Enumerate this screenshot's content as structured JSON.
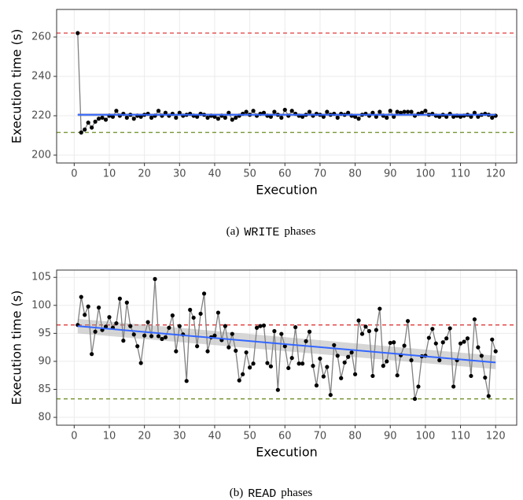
{
  "chart_data": [
    {
      "type": "line",
      "xlabel": "Execution",
      "ylabel": "Execution time (s)",
      "caption": {
        "label": "(a)",
        "code": "WRITE",
        "text": "phases"
      },
      "xlim": [
        -5,
        126
      ],
      "xticks": [
        0,
        10,
        20,
        30,
        40,
        50,
        60,
        70,
        80,
        90,
        100,
        110,
        120
      ],
      "ylim": [
        196,
        274
      ],
      "yticks": [
        200,
        220,
        240,
        260
      ],
      "grid": true,
      "x": [
        1,
        2,
        3,
        4,
        5,
        6,
        7,
        8,
        9,
        10,
        11,
        12,
        13,
        14,
        15,
        16,
        17,
        18,
        19,
        20,
        21,
        22,
        23,
        24,
        25,
        26,
        27,
        28,
        29,
        30,
        31,
        32,
        33,
        34,
        35,
        36,
        37,
        38,
        39,
        40,
        41,
        42,
        43,
        44,
        45,
        46,
        47,
        48,
        49,
        50,
        51,
        52,
        53,
        54,
        55,
        56,
        57,
        58,
        59,
        60,
        61,
        62,
        63,
        64,
        65,
        66,
        67,
        68,
        69,
        70,
        71,
        72,
        73,
        74,
        75,
        76,
        77,
        78,
        79,
        80,
        81,
        82,
        83,
        84,
        85,
        86,
        87,
        88,
        89,
        90,
        91,
        92,
        93,
        94,
        95,
        96,
        97,
        98,
        99,
        100,
        101,
        102,
        103,
        104,
        105,
        106,
        107,
        108,
        109,
        110,
        111,
        112,
        113,
        114,
        115,
        116,
        117,
        118,
        119,
        120
      ],
      "series": [
        {
          "color": "#000000",
          "line_color": "#808080",
          "values": [
            262,
            211.5,
            213,
            216.5,
            214,
            217,
            218.5,
            219,
            218,
            220,
            219.5,
            222.5,
            220,
            221,
            219,
            220.5,
            218.5,
            220,
            219.5,
            220.5,
            221,
            219,
            220,
            222.5,
            220,
            221.5,
            220,
            221,
            219,
            221.5,
            220,
            220.5,
            221,
            220,
            219.5,
            221,
            220.5,
            219,
            220,
            219.5,
            218.5,
            220,
            219,
            221.5,
            218,
            219,
            220,
            221,
            222,
            220.5,
            222.5,
            220,
            221,
            221.5,
            220,
            219.5,
            222,
            220.5,
            219,
            223,
            220,
            222.5,
            221,
            220,
            219.5,
            220.5,
            222,
            220,
            221,
            220.5,
            219.5,
            222,
            220.5,
            221,
            219,
            221,
            220.5,
            221.5,
            220,
            219.5,
            218.5,
            220.5,
            221,
            220,
            221.5,
            219.5,
            222,
            220,
            219,
            222.5,
            219.5,
            222,
            221.5,
            222,
            222,
            222,
            220,
            221,
            221.5,
            222.5,
            220.5,
            221,
            220,
            219.5,
            220.5,
            219.5,
            221,
            219.5,
            220,
            219.5,
            220,
            220.5,
            219.5,
            221.5,
            219.5,
            220.5,
            221,
            220.5,
            219,
            220
          ]
        }
      ],
      "trend": {
        "color": "#3366ff",
        "x": [
          1,
          120
        ],
        "values": [
          220.5,
          220.5
        ],
        "lower": [
          219.7,
          219.7
        ],
        "upper": [
          221.3,
          221.3
        ]
      },
      "hlines": [
        {
          "value": 262,
          "color": "#e03a3a"
        },
        {
          "value": 211.5,
          "color": "#6b8e23"
        }
      ]
    },
    {
      "type": "line",
      "xlabel": "Execution",
      "ylabel": "Execution time (s)",
      "caption": {
        "label": "(b)",
        "code": "READ",
        "text": "phases"
      },
      "xlim": [
        -5,
        126
      ],
      "xticks": [
        0,
        10,
        20,
        30,
        40,
        50,
        60,
        70,
        80,
        90,
        100,
        110,
        120
      ],
      "ylim": [
        78.6,
        106.3
      ],
      "yticks": [
        80,
        85,
        90,
        95,
        100,
        105
      ],
      "grid": true,
      "x": [
        1,
        2,
        3,
        4,
        5,
        6,
        7,
        8,
        9,
        10,
        11,
        12,
        13,
        14,
        15,
        16,
        17,
        18,
        19,
        20,
        21,
        22,
        23,
        24,
        25,
        26,
        27,
        28,
        29,
        30,
        31,
        32,
        33,
        34,
        35,
        36,
        37,
        38,
        39,
        40,
        41,
        42,
        43,
        44,
        45,
        46,
        47,
        48,
        49,
        50,
        51,
        52,
        53,
        54,
        55,
        56,
        57,
        58,
        59,
        60,
        61,
        62,
        63,
        64,
        65,
        66,
        67,
        68,
        69,
        70,
        71,
        72,
        73,
        74,
        75,
        76,
        77,
        78,
        79,
        80,
        81,
        82,
        83,
        84,
        85,
        86,
        87,
        88,
        89,
        90,
        91,
        92,
        93,
        94,
        95,
        96,
        97,
        98,
        99,
        100,
        101,
        102,
        103,
        104,
        105,
        106,
        107,
        108,
        109,
        110,
        111,
        112,
        113,
        114,
        115,
        116,
        117,
        118,
        119,
        120
      ],
      "series": [
        {
          "color": "#000000",
          "line_color": "#808080",
          "values": [
            96.5,
            101.5,
            98.3,
            99.8,
            91.3,
            95.3,
            99.6,
            95.6,
            96.2,
            97.9,
            96.0,
            96.8,
            101.2,
            93.7,
            100.5,
            96.3,
            94.8,
            92.7,
            89.7,
            94.6,
            97.0,
            94.5,
            104.7,
            94.5,
            94.0,
            94.3,
            96.0,
            98.2,
            91.8,
            96.3,
            94.8,
            86.5,
            99.2,
            97.8,
            92.7,
            98.5,
            102.1,
            91.8,
            94.3,
            94.6,
            98.7,
            93.8,
            96.3,
            92.5,
            94.9,
            91.9,
            86.6,
            87.7,
            91.6,
            88.9,
            89.6,
            96.0,
            96.3,
            96.4,
            89.7,
            89.1,
            95.4,
            84.9,
            94.9,
            92.7,
            88.8,
            90.6,
            96.1,
            89.6,
            89.6,
            93.6,
            95.3,
            89.2,
            85.7,
            90.5,
            87.3,
            89.0,
            84.0,
            92.9,
            91.0,
            87.0,
            89.8,
            90.8,
            91.6,
            87.7,
            97.3,
            94.9,
            96.2,
            95.4,
            87.4,
            95.6,
            99.4,
            89.2,
            90.0,
            93.3,
            93.4,
            87.5,
            91.1,
            92.8,
            97.2,
            90.2,
            83.3,
            85.5,
            90.9,
            91.0,
            94.2,
            95.8,
            93.2,
            90.2,
            93.4,
            94.1,
            95.9,
            85.5,
            90.2,
            93.2,
            93.5,
            94.1,
            87.4,
            97.5,
            92.5,
            91.0,
            87.1,
            83.8,
            93.9,
            91.8
          ]
        }
      ],
      "trend": {
        "color": "#3366ff",
        "x": [
          1,
          120
        ],
        "values": [
          96.3,
          89.8
        ],
        "lower": [
          95.0,
          88.6
        ],
        "upper": [
          97.6,
          91.0
        ]
      },
      "hlines": [
        {
          "value": 96.5,
          "color": "#e03a3a"
        },
        {
          "value": 83.3,
          "color": "#6b8e23"
        }
      ]
    }
  ]
}
